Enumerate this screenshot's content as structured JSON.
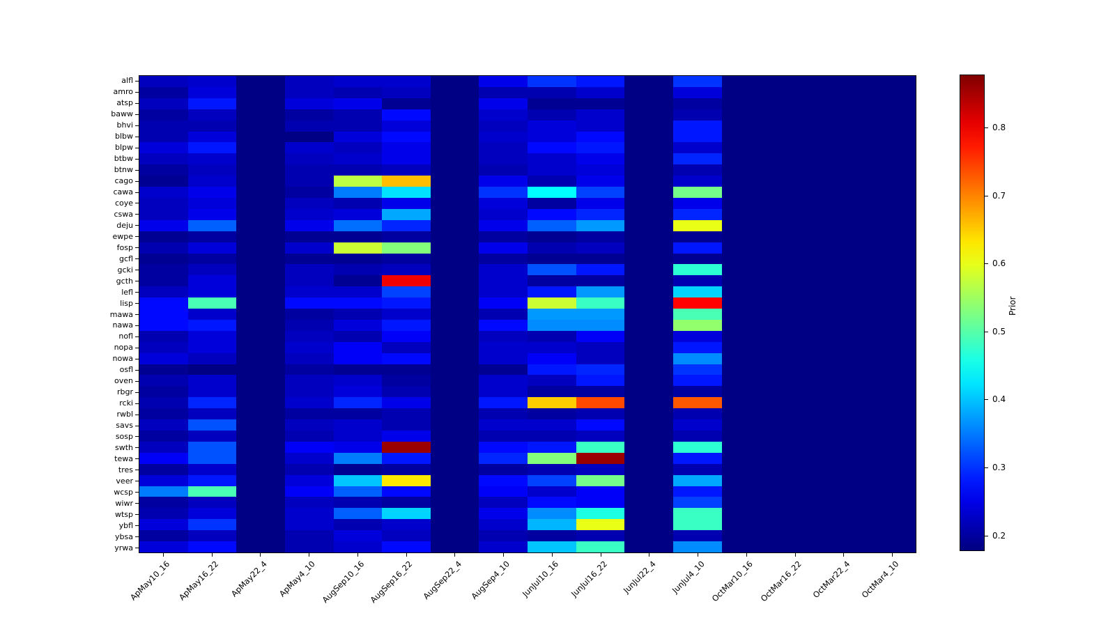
{
  "figure": {
    "background": "#ffffff"
  },
  "chart_data": {
    "type": "heatmap",
    "title": "",
    "colormap": "jet",
    "vmin": 0.177,
    "vmax": 0.878,
    "grid": false,
    "legend_position": "right-colorbar",
    "colorbar": {
      "label": "Prior",
      "ticks": [
        0.2,
        0.3,
        0.4,
        0.5,
        0.6,
        0.7,
        0.8
      ]
    },
    "x_categories": [
      "ApMay10_16",
      "ApMay16_22",
      "ApMay22_4",
      "ApMay4_10",
      "AugSep10_16",
      "AugSep16_22",
      "AugSep22_4",
      "AugSep4_10",
      "JunJul10_16",
      "JunJul16_22",
      "JunJul22_4",
      "JunJul4_10",
      "OctMar10_16",
      "OctMar16_22",
      "OctMar22_4",
      "OctMar4_10"
    ],
    "y_categories": [
      "alfl",
      "amro",
      "atsp",
      "baww",
      "bhvi",
      "blbw",
      "blpw",
      "btbw",
      "btnw",
      "cago",
      "cawa",
      "coye",
      "cswa",
      "deju",
      "ewpe",
      "fosp",
      "gcfl",
      "gcki",
      "gcth",
      "lefl",
      "lisp",
      "mawa",
      "nawa",
      "nofl",
      "nopa",
      "nowa",
      "osfl",
      "oven",
      "rbgr",
      "rcki",
      "rwbl",
      "savs",
      "sosp",
      "swth",
      "tewa",
      "tres",
      "veer",
      "wcsp",
      "wiwr",
      "wtsp",
      "ybfl",
      "ybsa",
      "yrwa"
    ],
    "values": [
      [
        0.22,
        0.23,
        0.18,
        0.22,
        0.23,
        0.23,
        0.18,
        0.25,
        0.3,
        0.28,
        0.18,
        0.3,
        0.18,
        0.18,
        0.18,
        0.18
      ],
      [
        0.2,
        0.24,
        0.18,
        0.22,
        0.21,
        0.22,
        0.18,
        0.21,
        0.21,
        0.23,
        0.18,
        0.24,
        0.18,
        0.18,
        0.18,
        0.18
      ],
      [
        0.22,
        0.28,
        0.18,
        0.24,
        0.25,
        0.19,
        0.18,
        0.25,
        0.19,
        0.19,
        0.18,
        0.2,
        0.18,
        0.18,
        0.18,
        0.18
      ],
      [
        0.2,
        0.22,
        0.18,
        0.2,
        0.21,
        0.27,
        0.18,
        0.23,
        0.21,
        0.23,
        0.18,
        0.21,
        0.18,
        0.18,
        0.18,
        0.18
      ],
      [
        0.21,
        0.21,
        0.18,
        0.21,
        0.21,
        0.24,
        0.18,
        0.22,
        0.24,
        0.23,
        0.18,
        0.28,
        0.18,
        0.18,
        0.18,
        0.18
      ],
      [
        0.21,
        0.24,
        0.18,
        0.18,
        0.24,
        0.27,
        0.18,
        0.23,
        0.24,
        0.27,
        0.18,
        0.28,
        0.18,
        0.18,
        0.18,
        0.18
      ],
      [
        0.24,
        0.28,
        0.18,
        0.23,
        0.22,
        0.25,
        0.18,
        0.22,
        0.27,
        0.28,
        0.18,
        0.23,
        0.18,
        0.18,
        0.18,
        0.18
      ],
      [
        0.22,
        0.23,
        0.18,
        0.22,
        0.23,
        0.25,
        0.18,
        0.22,
        0.23,
        0.25,
        0.18,
        0.29,
        0.18,
        0.18,
        0.18,
        0.18
      ],
      [
        0.2,
        0.22,
        0.18,
        0.21,
        0.21,
        0.22,
        0.18,
        0.21,
        0.23,
        0.24,
        0.18,
        0.21,
        0.18,
        0.18,
        0.18,
        0.18
      ],
      [
        0.19,
        0.23,
        0.18,
        0.21,
        0.57,
        0.66,
        0.18,
        0.25,
        0.21,
        0.25,
        0.18,
        0.23,
        0.18,
        0.18,
        0.18,
        0.18
      ],
      [
        0.23,
        0.25,
        0.18,
        0.2,
        0.35,
        0.42,
        0.18,
        0.3,
        0.44,
        0.31,
        0.18,
        0.52,
        0.18,
        0.18,
        0.18,
        0.18
      ],
      [
        0.22,
        0.24,
        0.18,
        0.22,
        0.21,
        0.25,
        0.18,
        0.24,
        0.2,
        0.25,
        0.18,
        0.25,
        0.18,
        0.18,
        0.18,
        0.18
      ],
      [
        0.22,
        0.25,
        0.18,
        0.23,
        0.24,
        0.38,
        0.18,
        0.23,
        0.27,
        0.29,
        0.18,
        0.29,
        0.18,
        0.18,
        0.18,
        0.18
      ],
      [
        0.25,
        0.33,
        0.18,
        0.25,
        0.34,
        0.29,
        0.18,
        0.25,
        0.33,
        0.37,
        0.18,
        0.6,
        0.18,
        0.18,
        0.18,
        0.18
      ],
      [
        0.19,
        0.2,
        0.18,
        0.19,
        0.19,
        0.2,
        0.18,
        0.2,
        0.19,
        0.2,
        0.18,
        0.19,
        0.18,
        0.18,
        0.18,
        0.18
      ],
      [
        0.21,
        0.24,
        0.18,
        0.23,
        0.58,
        0.53,
        0.18,
        0.25,
        0.21,
        0.22,
        0.18,
        0.28,
        0.18,
        0.18,
        0.18,
        0.18
      ],
      [
        0.19,
        0.2,
        0.18,
        0.19,
        0.19,
        0.2,
        0.18,
        0.2,
        0.19,
        0.19,
        0.18,
        0.19,
        0.18,
        0.18,
        0.18,
        0.18
      ],
      [
        0.2,
        0.22,
        0.18,
        0.22,
        0.21,
        0.22,
        0.18,
        0.23,
        0.32,
        0.28,
        0.18,
        0.47,
        0.18,
        0.18,
        0.18,
        0.18
      ],
      [
        0.2,
        0.24,
        0.18,
        0.22,
        0.19,
        0.8,
        0.18,
        0.23,
        0.2,
        0.2,
        0.18,
        0.21,
        0.18,
        0.18,
        0.18,
        0.18
      ],
      [
        0.22,
        0.24,
        0.18,
        0.23,
        0.23,
        0.31,
        0.18,
        0.23,
        0.28,
        0.37,
        0.18,
        0.41,
        0.18,
        0.18,
        0.18,
        0.18
      ],
      [
        0.27,
        0.49,
        0.18,
        0.27,
        0.27,
        0.28,
        0.18,
        0.26,
        0.58,
        0.48,
        0.18,
        0.79,
        0.18,
        0.18,
        0.18,
        0.18
      ],
      [
        0.27,
        0.23,
        0.18,
        0.2,
        0.21,
        0.23,
        0.18,
        0.21,
        0.37,
        0.37,
        0.18,
        0.49,
        0.18,
        0.18,
        0.18,
        0.18
      ],
      [
        0.27,
        0.28,
        0.18,
        0.21,
        0.24,
        0.28,
        0.18,
        0.27,
        0.36,
        0.36,
        0.18,
        0.54,
        0.18,
        0.18,
        0.18,
        0.18
      ],
      [
        0.21,
        0.24,
        0.18,
        0.22,
        0.21,
        0.26,
        0.18,
        0.22,
        0.21,
        0.26,
        0.18,
        0.24,
        0.18,
        0.18,
        0.18,
        0.18
      ],
      [
        0.22,
        0.24,
        0.18,
        0.23,
        0.26,
        0.22,
        0.18,
        0.23,
        0.23,
        0.22,
        0.18,
        0.28,
        0.18,
        0.18,
        0.18,
        0.18
      ],
      [
        0.24,
        0.22,
        0.18,
        0.22,
        0.26,
        0.27,
        0.18,
        0.23,
        0.26,
        0.22,
        0.18,
        0.36,
        0.18,
        0.18,
        0.18,
        0.18
      ],
      [
        0.19,
        0.18,
        0.18,
        0.2,
        0.19,
        0.19,
        0.18,
        0.19,
        0.28,
        0.29,
        0.18,
        0.3,
        0.18,
        0.18,
        0.18,
        0.18
      ],
      [
        0.21,
        0.23,
        0.18,
        0.22,
        0.23,
        0.2,
        0.18,
        0.23,
        0.22,
        0.28,
        0.18,
        0.28,
        0.18,
        0.18,
        0.18,
        0.18
      ],
      [
        0.2,
        0.23,
        0.18,
        0.22,
        0.24,
        0.21,
        0.18,
        0.23,
        0.2,
        0.2,
        0.18,
        0.2,
        0.18,
        0.18,
        0.18,
        0.18
      ],
      [
        0.21,
        0.29,
        0.18,
        0.23,
        0.29,
        0.25,
        0.18,
        0.28,
        0.65,
        0.74,
        0.18,
        0.73,
        0.18,
        0.18,
        0.18,
        0.18
      ],
      [
        0.2,
        0.22,
        0.18,
        0.2,
        0.2,
        0.21,
        0.18,
        0.21,
        0.2,
        0.21,
        0.18,
        0.21,
        0.18,
        0.18,
        0.18,
        0.18
      ],
      [
        0.22,
        0.32,
        0.18,
        0.22,
        0.23,
        0.21,
        0.18,
        0.23,
        0.23,
        0.27,
        0.18,
        0.23,
        0.18,
        0.18,
        0.18,
        0.18
      ],
      [
        0.2,
        0.22,
        0.18,
        0.21,
        0.23,
        0.25,
        0.18,
        0.21,
        0.21,
        0.22,
        0.18,
        0.21,
        0.18,
        0.18,
        0.18,
        0.18
      ],
      [
        0.22,
        0.32,
        0.18,
        0.26,
        0.25,
        0.86,
        0.18,
        0.27,
        0.28,
        0.48,
        0.18,
        0.47,
        0.18,
        0.18,
        0.18,
        0.18
      ],
      [
        0.26,
        0.32,
        0.18,
        0.23,
        0.35,
        0.28,
        0.18,
        0.29,
        0.53,
        0.86,
        0.18,
        0.28,
        0.18,
        0.18,
        0.18,
        0.18
      ],
      [
        0.2,
        0.23,
        0.18,
        0.21,
        0.19,
        0.2,
        0.18,
        0.2,
        0.21,
        0.22,
        0.18,
        0.21,
        0.18,
        0.18,
        0.18,
        0.18
      ],
      [
        0.24,
        0.28,
        0.18,
        0.24,
        0.4,
        0.63,
        0.18,
        0.27,
        0.31,
        0.52,
        0.18,
        0.38,
        0.18,
        0.18,
        0.18,
        0.18
      ],
      [
        0.35,
        0.49,
        0.18,
        0.26,
        0.33,
        0.27,
        0.18,
        0.26,
        0.23,
        0.26,
        0.18,
        0.28,
        0.18,
        0.18,
        0.18,
        0.18
      ],
      [
        0.2,
        0.22,
        0.18,
        0.22,
        0.21,
        0.2,
        0.18,
        0.22,
        0.27,
        0.26,
        0.18,
        0.31,
        0.18,
        0.18,
        0.18,
        0.18
      ],
      [
        0.21,
        0.24,
        0.18,
        0.23,
        0.33,
        0.41,
        0.18,
        0.25,
        0.36,
        0.46,
        0.18,
        0.48,
        0.18,
        0.18,
        0.18,
        0.18
      ],
      [
        0.24,
        0.3,
        0.18,
        0.23,
        0.21,
        0.23,
        0.18,
        0.23,
        0.39,
        0.6,
        0.18,
        0.48,
        0.18,
        0.18,
        0.18,
        0.18
      ],
      [
        0.2,
        0.22,
        0.18,
        0.21,
        0.24,
        0.22,
        0.18,
        0.21,
        0.2,
        0.21,
        0.18,
        0.21,
        0.18,
        0.18,
        0.18,
        0.18
      ],
      [
        0.24,
        0.27,
        0.18,
        0.21,
        0.23,
        0.27,
        0.18,
        0.23,
        0.4,
        0.48,
        0.18,
        0.36,
        0.18,
        0.18,
        0.18,
        0.18
      ]
    ]
  }
}
